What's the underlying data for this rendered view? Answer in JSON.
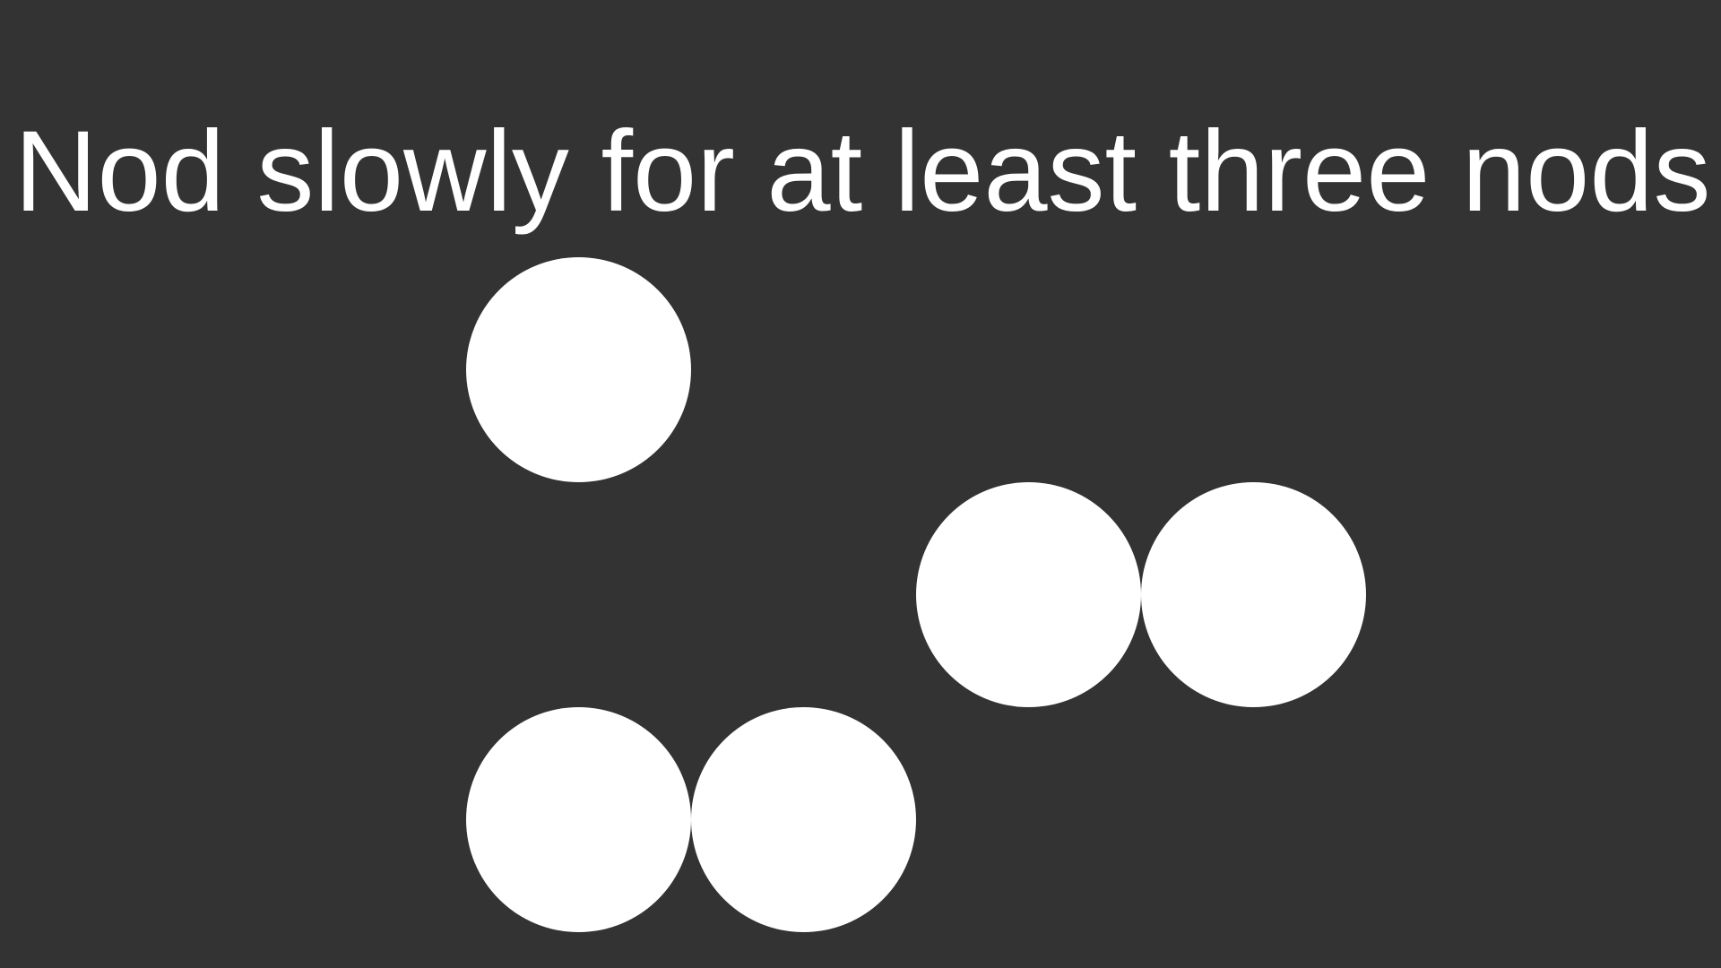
{
  "instruction": {
    "text": "Nod slowly for at least three nods"
  },
  "theme": {
    "background": "#333333",
    "foreground": "#ffffff"
  },
  "dots": [
    {
      "name": "dot-1"
    },
    {
      "name": "dot-2"
    },
    {
      "name": "dot-3"
    },
    {
      "name": "dot-4"
    },
    {
      "name": "dot-5"
    }
  ]
}
